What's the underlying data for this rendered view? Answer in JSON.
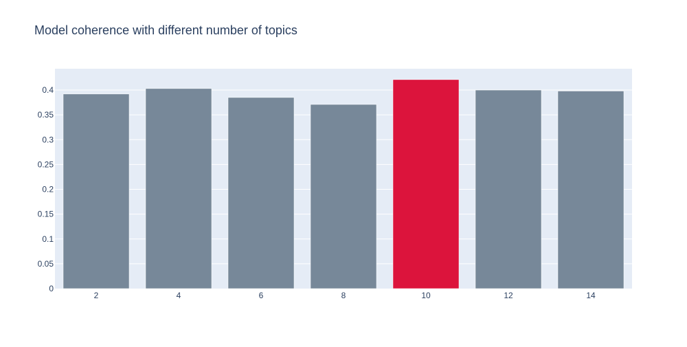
{
  "chart_data": {
    "type": "bar",
    "title": "Model coherence with different number of topics",
    "xlabel": "",
    "ylabel": "",
    "categories": [
      "2",
      "4",
      "6",
      "8",
      "10",
      "12",
      "14"
    ],
    "values": [
      0.392,
      0.403,
      0.385,
      0.371,
      0.421,
      0.4,
      0.398
    ],
    "ylim": [
      0,
      0.443
    ],
    "y_ticks": [
      0,
      0.05,
      0.1,
      0.15,
      0.2,
      0.25,
      0.3,
      0.35,
      0.4
    ],
    "y_tick_labels": [
      "0",
      "0.05",
      "0.1",
      "0.15",
      "0.2",
      "0.25",
      "0.3",
      "0.35",
      "0.4"
    ],
    "grid": true,
    "highlight_category": "10",
    "colors": {
      "bar_default": "#778899",
      "bar_highlight": "#dc143c",
      "plot_background": "#e5ecf6",
      "gridline": "#ffffff",
      "text": "#2a3f5f"
    }
  }
}
